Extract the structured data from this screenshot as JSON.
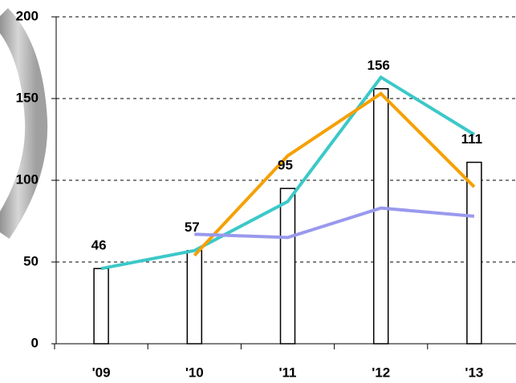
{
  "chart_data": {
    "type": "bar",
    "categories": [
      "'09",
      "'10",
      "'11",
      "'12",
      "'13"
    ],
    "values": [
      46,
      57,
      95,
      156,
      111
    ],
    "color": "#ffffff",
    "series": [
      {
        "color": "#3cc8c8",
        "values": [
          46,
          57,
          87,
          163,
          128
        ]
      },
      {
        "color": "#f5a000",
        "values": [
          null,
          54,
          115,
          153,
          96
        ]
      },
      {
        "color": "#9999ee",
        "values": [
          null,
          67,
          65,
          83,
          78
        ]
      }
    ],
    "ylim": [
      0,
      200
    ],
    "yticks": [
      0,
      50,
      100,
      150,
      200
    ],
    "grid": true
  }
}
